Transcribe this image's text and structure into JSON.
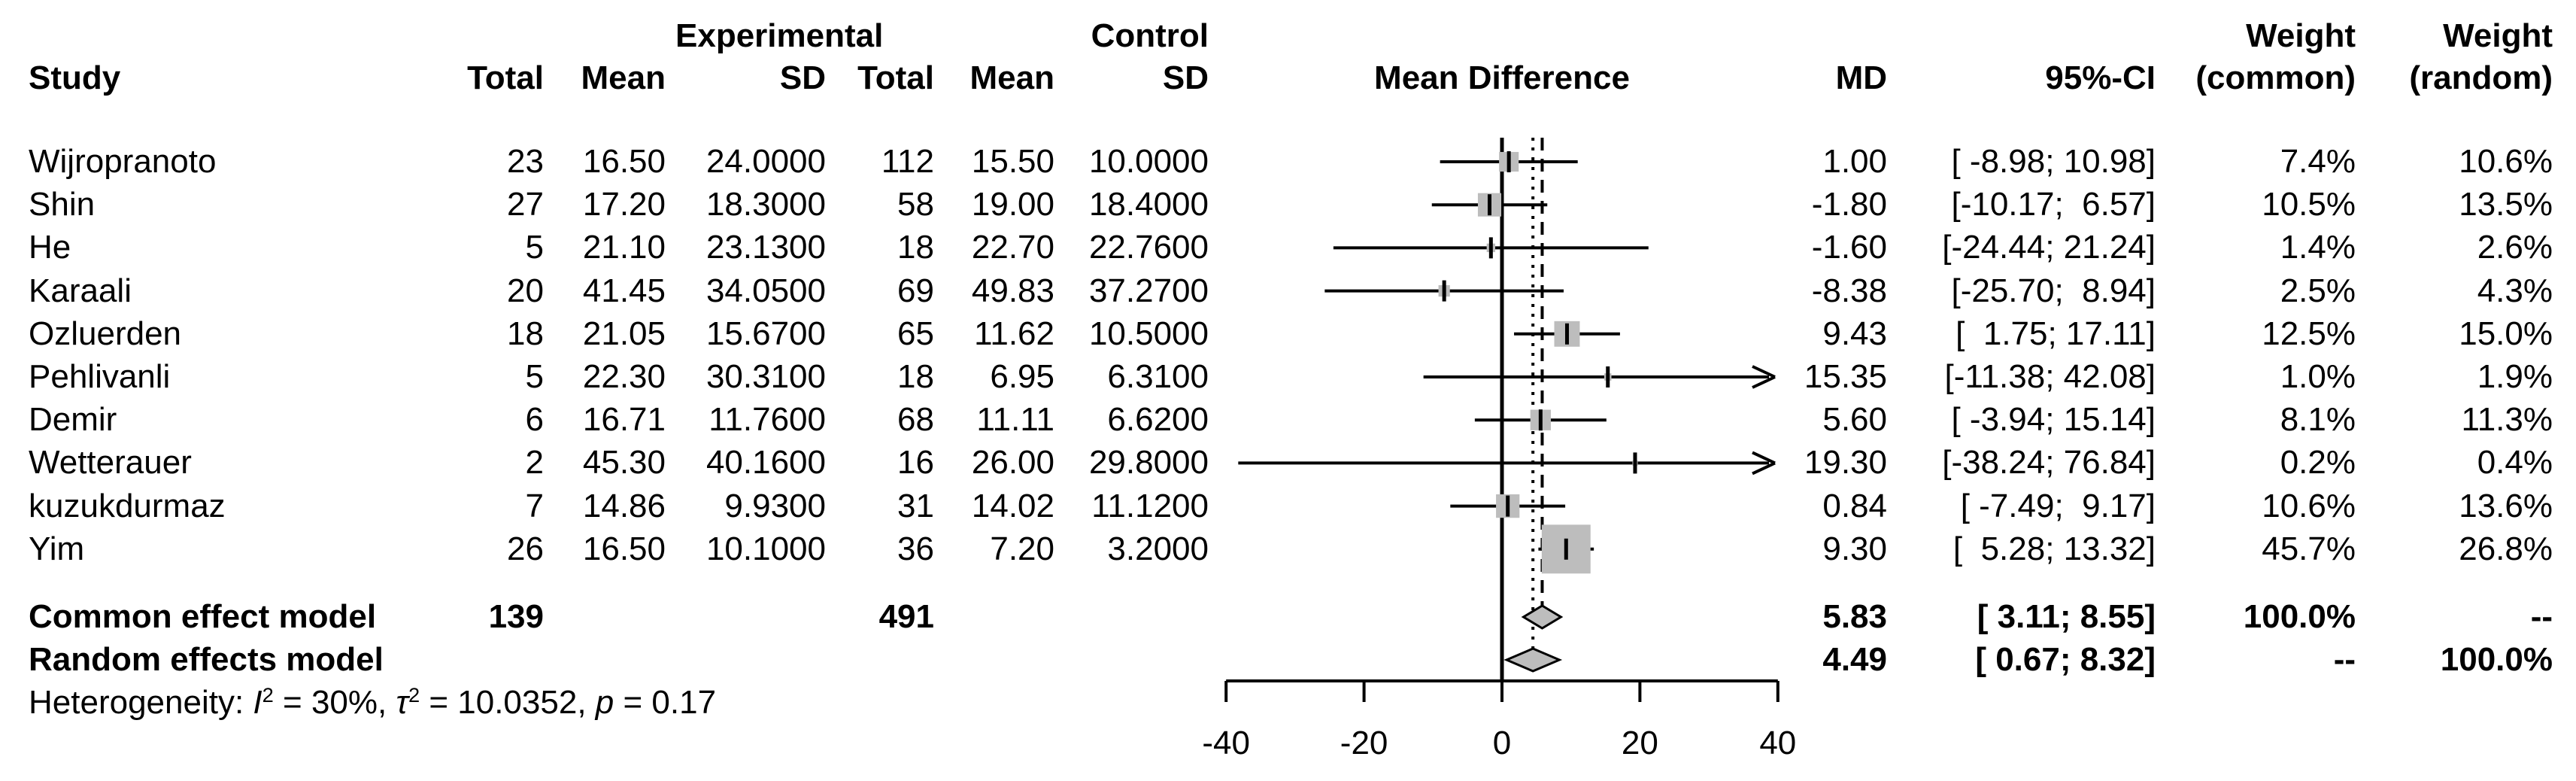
{
  "header": {
    "group_experimental": "Experimental",
    "group_control": "Control",
    "col_study": "Study",
    "col_total": "Total",
    "col_mean": "Mean",
    "col_sd": "SD",
    "col_plot": "Mean Difference",
    "col_md": "MD",
    "col_ci": "95%-CI",
    "col_weight": "Weight",
    "col_weight_common": "(common)",
    "col_weight_random": "(random)"
  },
  "chart_data": {
    "type": "forest",
    "plot_title": "Mean Difference",
    "effect_measure": "MD",
    "xlim": [
      -40,
      40
    ],
    "xticks": [
      "-40",
      "-20",
      "0",
      "20",
      "40"
    ],
    "grid": false,
    "zero_line": 0,
    "reference_lines": [
      {
        "value": 5.83,
        "style": "dashed",
        "refers_to": "common effect"
      },
      {
        "value": 4.49,
        "style": "dotted",
        "refers_to": "random effects"
      }
    ],
    "studies": [
      {
        "name": "Wijropranoto",
        "exp_total": "23",
        "exp_mean": "16.50",
        "exp_sd": "24.0000",
        "ctl_total": "112",
        "ctl_mean": "15.50",
        "ctl_sd": "10.0000",
        "md": 1.0,
        "lo": -8.98,
        "hi": 10.98,
        "md_text": "1.00",
        "ci_text": "[ -8.98; 10.98]",
        "weight_common": 7.4,
        "weight_random": 10.6,
        "wc_text": "7.4%",
        "wr_text": "10.6%"
      },
      {
        "name": "Shin",
        "exp_total": "27",
        "exp_mean": "17.20",
        "exp_sd": "18.3000",
        "ctl_total": "58",
        "ctl_mean": "19.00",
        "ctl_sd": "18.4000",
        "md": -1.8,
        "lo": -10.17,
        "hi": 6.57,
        "md_text": "-1.80",
        "ci_text": "[-10.17;  6.57]",
        "weight_common": 10.5,
        "weight_random": 13.5,
        "wc_text": "10.5%",
        "wr_text": "13.5%"
      },
      {
        "name": "He",
        "exp_total": "5",
        "exp_mean": "21.10",
        "exp_sd": "23.1300",
        "ctl_total": "18",
        "ctl_mean": "22.70",
        "ctl_sd": "22.7600",
        "md": -1.6,
        "lo": -24.44,
        "hi": 21.24,
        "md_text": "-1.60",
        "ci_text": "[-24.44; 21.24]",
        "weight_common": 1.4,
        "weight_random": 2.6,
        "wc_text": "1.4%",
        "wr_text": "2.6%"
      },
      {
        "name": "Karaali",
        "exp_total": "20",
        "exp_mean": "41.45",
        "exp_sd": "34.0500",
        "ctl_total": "69",
        "ctl_mean": "49.83",
        "ctl_sd": "37.2700",
        "md": -8.38,
        "lo": -25.7,
        "hi": 8.94,
        "md_text": "-8.38",
        "ci_text": "[-25.70;  8.94]",
        "weight_common": 2.5,
        "weight_random": 4.3,
        "wc_text": "2.5%",
        "wr_text": "4.3%"
      },
      {
        "name": "Ozluerden",
        "exp_total": "18",
        "exp_mean": "21.05",
        "exp_sd": "15.6700",
        "ctl_total": "65",
        "ctl_mean": "11.62",
        "ctl_sd": "10.5000",
        "md": 9.43,
        "lo": 1.75,
        "hi": 17.11,
        "md_text": "9.43",
        "ci_text": "[  1.75; 17.11]",
        "weight_common": 12.5,
        "weight_random": 15.0,
        "wc_text": "12.5%",
        "wr_text": "15.0%"
      },
      {
        "name": "Pehlivanli",
        "exp_total": "5",
        "exp_mean": "22.30",
        "exp_sd": "30.3100",
        "ctl_total": "18",
        "ctl_mean": "6.95",
        "ctl_sd": "6.3100",
        "md": 15.35,
        "lo": -11.38,
        "hi": 42.08,
        "md_text": "15.35",
        "ci_text": "[-11.38; 42.08]",
        "weight_common": 1.0,
        "weight_random": 1.9,
        "wc_text": "1.0%",
        "wr_text": "1.9%"
      },
      {
        "name": "Demir",
        "exp_total": "6",
        "exp_mean": "16.71",
        "exp_sd": "11.7600",
        "ctl_total": "68",
        "ctl_mean": "11.11",
        "ctl_sd": "6.6200",
        "md": 5.6,
        "lo": -3.94,
        "hi": 15.14,
        "md_text": "5.60",
        "ci_text": "[ -3.94; 15.14]",
        "weight_common": 8.1,
        "weight_random": 11.3,
        "wc_text": "8.1%",
        "wr_text": "11.3%"
      },
      {
        "name": "Wetterauer",
        "exp_total": "2",
        "exp_mean": "45.30",
        "exp_sd": "40.1600",
        "ctl_total": "16",
        "ctl_mean": "26.00",
        "ctl_sd": "29.8000",
        "md": 19.3,
        "lo": -38.24,
        "hi": 76.84,
        "md_text": "19.30",
        "ci_text": "[-38.24; 76.84]",
        "weight_common": 0.2,
        "weight_random": 0.4,
        "wc_text": "0.2%",
        "wr_text": "0.4%"
      },
      {
        "name": "kuzukdurmaz",
        "exp_total": "7",
        "exp_mean": "14.86",
        "exp_sd": "9.9300",
        "ctl_total": "31",
        "ctl_mean": "14.02",
        "ctl_sd": "11.1200",
        "md": 0.84,
        "lo": -7.49,
        "hi": 9.17,
        "md_text": "0.84",
        "ci_text": "[ -7.49;  9.17]",
        "weight_common": 10.6,
        "weight_random": 13.6,
        "wc_text": "10.6%",
        "wr_text": "13.6%"
      },
      {
        "name": "Yim",
        "exp_total": "26",
        "exp_mean": "16.50",
        "exp_sd": "10.1000",
        "ctl_total": "36",
        "ctl_mean": "7.20",
        "ctl_sd": "3.2000",
        "md": 9.3,
        "lo": 5.28,
        "hi": 13.32,
        "md_text": "9.30",
        "ci_text": "[  5.28; 13.32]",
        "weight_common": 45.7,
        "weight_random": 26.8,
        "wc_text": "45.7%",
        "wr_text": "26.8%"
      }
    ],
    "summaries": [
      {
        "label": "Common effect model",
        "exp_total": "139",
        "ctl_total": "491",
        "md": 5.83,
        "lo": 3.11,
        "hi": 8.55,
        "md_text": "5.83",
        "ci_text": "[ 3.11; 8.55]",
        "wc_text": "100.0%",
        "wr_text": "--"
      },
      {
        "label": "Random effects model",
        "exp_total": "",
        "ctl_total": "",
        "md": 4.49,
        "lo": 0.67,
        "hi": 8.32,
        "md_text": "4.49",
        "ci_text": "[ 0.67; 8.32]",
        "wc_text": "--",
        "wr_text": "100.0%"
      }
    ],
    "heterogeneity_parts": [
      {
        "t": "Heterogeneity: ",
        "s": "plain"
      },
      {
        "t": "I",
        "s": "italic"
      },
      {
        "t": "2",
        "s": "sup"
      },
      {
        "t": " = 30%, ",
        "s": "plain"
      },
      {
        "t": "τ",
        "s": "italic"
      },
      {
        "t": "2",
        "s": "sup"
      },
      {
        "t": " = 10.0352, ",
        "s": "plain"
      },
      {
        "t": "p",
        "s": "italic"
      },
      {
        "t": " = 0.17",
        "s": "plain"
      }
    ],
    "colors": {
      "square_fill": "#bdbdbd",
      "diamond_fill": "#bdbdbd",
      "line": "#000000",
      "text": "#000000"
    }
  }
}
